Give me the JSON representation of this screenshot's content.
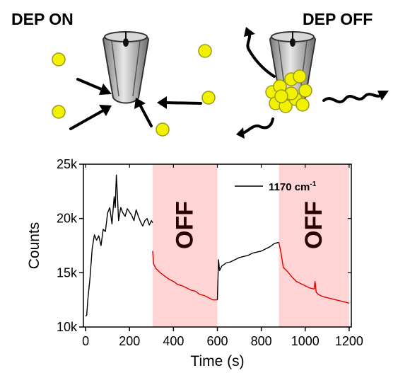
{
  "panels": {
    "left_label": "DEP ON",
    "right_label": "DEP OFF"
  },
  "colors": {
    "particle": "#f2f200",
    "particle_stroke": "#9a9a1e",
    "arrow": "#000000",
    "on_trace": "#000000",
    "off_trace": "#e00000",
    "off_band": "#ffd4d4",
    "tip_body": "#b0b0b0"
  },
  "chart_data": {
    "type": "line",
    "xlabel": "Time (s)",
    "ylabel": "Counts",
    "xlim": [
      -10,
      1210
    ],
    "ylim": [
      10000,
      25000
    ],
    "xticks": [
      0,
      200,
      400,
      600,
      800,
      1000,
      1200
    ],
    "xtick_labels": [
      "0",
      "200",
      "400",
      "600",
      "800",
      "1000",
      "1200"
    ],
    "yticks": [
      10000,
      15000,
      20000,
      25000
    ],
    "ytick_labels": [
      "10k",
      "15k",
      "20k",
      "25k"
    ],
    "legend": {
      "label": "1170 cm",
      "superscript": "-1",
      "placement": "top-right"
    },
    "off_regions": [
      {
        "start": 305,
        "end": 600,
        "label": "OFF"
      },
      {
        "start": 880,
        "end": 1200,
        "label": "OFF"
      }
    ],
    "segments": [
      {
        "state": "on",
        "x": [
          0,
          5,
          10,
          20,
          30,
          40,
          50,
          60,
          70,
          80,
          90,
          100,
          110,
          120,
          130,
          135,
          140,
          145,
          150,
          160,
          170,
          180,
          190,
          200,
          210,
          220,
          230,
          240,
          250,
          260,
          270,
          280,
          290,
          300,
          305
        ],
        "y": [
          11000,
          11100,
          12500,
          14500,
          17200,
          18500,
          18000,
          18400,
          17500,
          19000,
          18800,
          20500,
          21000,
          19500,
          22000,
          21000,
          24000,
          22000,
          19800,
          21000,
          20500,
          20200,
          20900,
          20600,
          20300,
          19800,
          20800,
          20200,
          19700,
          19300,
          19800,
          20000,
          19400,
          19800,
          19600
        ]
      },
      {
        "state": "off",
        "x": [
          305,
          310,
          320,
          330,
          340,
          360,
          380,
          400,
          420,
          440,
          460,
          480,
          500,
          520,
          540,
          560,
          580,
          600
        ],
        "y": [
          17000,
          15800,
          15400,
          15200,
          15000,
          14700,
          14400,
          14200,
          13900,
          13800,
          13600,
          13400,
          13300,
          13000,
          12900,
          12700,
          12500,
          12500
        ]
      },
      {
        "state": "on",
        "x": [
          600,
          605,
          610,
          620,
          640,
          660,
          680,
          700,
          720,
          740,
          760,
          780,
          800,
          820,
          840,
          860,
          880
        ],
        "y": [
          12500,
          16200,
          15200,
          15600,
          15900,
          16000,
          16200,
          16400,
          16500,
          16600,
          16800,
          16900,
          17000,
          17200,
          17400,
          17700,
          17800
        ]
      },
      {
        "state": "off",
        "x": [
          880,
          890,
          900,
          920,
          940,
          960,
          980,
          1000,
          1020,
          1040,
          1045,
          1050,
          1060,
          1080,
          1100,
          1120,
          1140,
          1160,
          1180,
          1200
        ],
        "y": [
          17800,
          16800,
          15500,
          15100,
          14600,
          14200,
          14000,
          13800,
          13600,
          13500,
          14200,
          13200,
          13000,
          12800,
          12700,
          12600,
          12500,
          12400,
          12300,
          12200
        ]
      }
    ]
  }
}
